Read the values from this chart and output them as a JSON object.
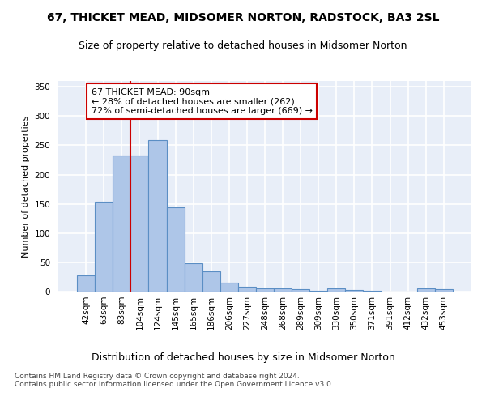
{
  "title1": "67, THICKET MEAD, MIDSOMER NORTON, RADSTOCK, BA3 2SL",
  "title2": "Size of property relative to detached houses in Midsomer Norton",
  "xlabel": "Distribution of detached houses by size in Midsomer Norton",
  "ylabel": "Number of detached properties",
  "footnote": "Contains HM Land Registry data © Crown copyright and database right 2024.\nContains public sector information licensed under the Open Government Licence v3.0.",
  "bar_labels": [
    "42sqm",
    "63sqm",
    "83sqm",
    "104sqm",
    "124sqm",
    "145sqm",
    "165sqm",
    "186sqm",
    "206sqm",
    "227sqm",
    "248sqm",
    "268sqm",
    "289sqm",
    "309sqm",
    "330sqm",
    "350sqm",
    "371sqm",
    "391sqm",
    "412sqm",
    "432sqm",
    "453sqm"
  ],
  "bar_values": [
    28,
    154,
    232,
    232,
    259,
    144,
    48,
    35,
    15,
    9,
    6,
    5,
    4,
    2,
    5,
    3,
    1,
    0,
    0,
    5,
    4
  ],
  "bar_color": "#aec6e8",
  "bar_edge_color": "#5b8ec4",
  "background_color": "#e8eef8",
  "grid_color": "#ffffff",
  "ylim": [
    0,
    360
  ],
  "yticks": [
    0,
    50,
    100,
    150,
    200,
    250,
    300,
    350
  ],
  "property_label": "67 THICKET MEAD: 90sqm",
  "annotation_line1": "← 28% of detached houses are smaller (262)",
  "annotation_line2": "72% of semi-detached houses are larger (669) →",
  "annotation_box_color": "#ffffff",
  "annotation_box_edge": "#cc0000",
  "property_line_color": "#cc0000",
  "title1_fontsize": 10,
  "title2_fontsize": 9,
  "xlabel_fontsize": 9,
  "ylabel_fontsize": 8,
  "tick_fontsize": 7.5,
  "annotation_fontsize": 8,
  "footnote_fontsize": 6.5
}
